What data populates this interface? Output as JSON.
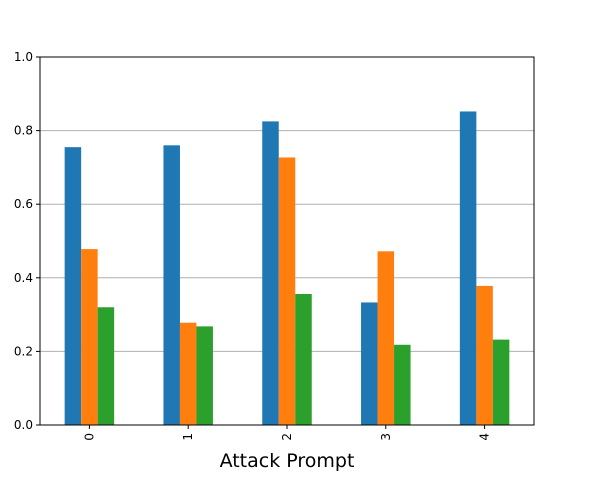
{
  "chart_data": {
    "type": "bar",
    "title": "",
    "xlabel": "Attack Prompt",
    "ylabel": "",
    "categories": [
      "0",
      "1",
      "2",
      "3",
      "4"
    ],
    "series": [
      {
        "color": "#1f77b4",
        "values": [
          0.755,
          0.76,
          0.825,
          0.333,
          0.852
        ]
      },
      {
        "color": "#ff7f0e",
        "values": [
          0.478,
          0.278,
          0.727,
          0.472,
          0.378
        ]
      },
      {
        "color": "#2ca02c",
        "values": [
          0.32,
          0.268,
          0.356,
          0.218,
          0.232
        ]
      }
    ],
    "ylim": [
      0,
      1.0
    ],
    "yticks": [
      "0.0",
      "0.2",
      "0.4",
      "0.6",
      "0.8",
      "1.0"
    ],
    "grid": "horizontal",
    "legend": "none",
    "x_tick_rotation": "vertical"
  }
}
